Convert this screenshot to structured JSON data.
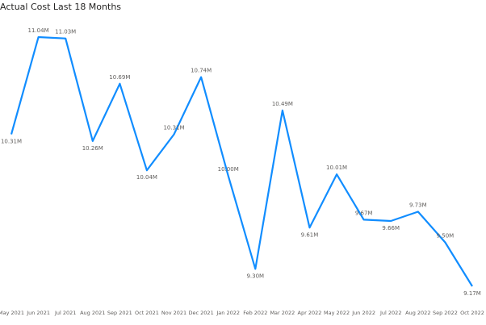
{
  "chart_data": {
    "type": "line",
    "title": "Actual Cost Last 18 Months",
    "categories": [
      "May 2021",
      "Jun 2021",
      "Jul 2021",
      "Aug 2021",
      "Sep 2021",
      "Oct 2021",
      "Nov 2021",
      "Dec 2021",
      "Jan 2022",
      "Feb 2022",
      "Mar 2022",
      "Apr 2022",
      "May 2022",
      "Jun 2022",
      "Jul 2022",
      "Aug 2022",
      "Sep 2022",
      "Oct 2022"
    ],
    "values": [
      10.31,
      11.04,
      11.03,
      10.26,
      10.69,
      10.04,
      10.31,
      10.74,
      10.0,
      9.3,
      10.49,
      9.61,
      10.01,
      9.67,
      9.66,
      9.73,
      9.5,
      9.17
    ],
    "value_labels": [
      "10.31M",
      "11.04M",
      "11.03M",
      "10.26M",
      "10.69M",
      "10.04M",
      "10.31M",
      "10.74M",
      "10.00M",
      "9.30M",
      "10.49M",
      "9.61M",
      "10.01M",
      "9.67M",
      "9.66M",
      "9.73M",
      "9.50M",
      "9.17M"
    ],
    "color": "#118dff"
  }
}
